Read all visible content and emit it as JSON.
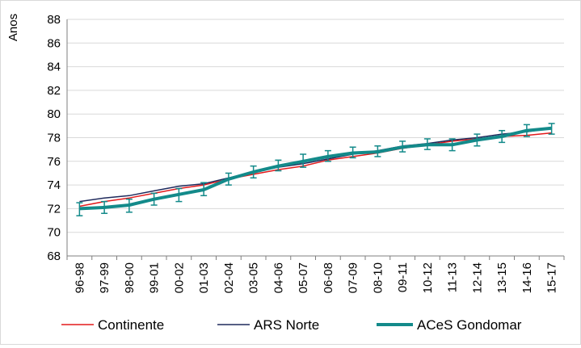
{
  "chart_data": {
    "type": "line",
    "ylabel": "Anos",
    "ylim": [
      68,
      88
    ],
    "ytick_step": 2,
    "grid": "horizontal",
    "legend_position": "bottom",
    "categories": [
      "96-98",
      "97-99",
      "98-00",
      "99-01",
      "00-02",
      "01-03",
      "02-04",
      "03-05",
      "04-06",
      "05-07",
      "06-08",
      "07-09",
      "08-10",
      "09-11",
      "10-12",
      "11-13",
      "12-14",
      "13-15",
      "14-16",
      "15-17"
    ],
    "series": [
      {
        "name": "Continente",
        "color": "#e31a1c",
        "values": [
          72.2,
          72.6,
          72.9,
          73.3,
          73.7,
          74.0,
          74.5,
          74.9,
          75.3,
          75.6,
          76.1,
          76.4,
          76.7,
          77.1,
          77.4,
          77.7,
          77.9,
          78.1,
          78.2,
          78.4
        ]
      },
      {
        "name": "ARS Norte",
        "color": "#1f2a5c",
        "values": [
          72.6,
          72.9,
          73.1,
          73.5,
          73.9,
          74.1,
          74.6,
          75.1,
          75.5,
          75.8,
          76.2,
          76.6,
          76.9,
          77.3,
          77.5,
          77.8,
          78.0,
          78.3,
          78.5,
          78.8
        ]
      },
      {
        "name": "ACeS Gondomar",
        "color": "#138a8a",
        "values": [
          72.0,
          72.1,
          72.3,
          72.8,
          73.2,
          73.6,
          74.5,
          75.1,
          75.6,
          76.0,
          76.4,
          76.7,
          76.8,
          77.2,
          77.4,
          77.4,
          77.8,
          78.1,
          78.6,
          78.8
        ],
        "error_low": [
          71.4,
          71.6,
          71.7,
          72.3,
          72.6,
          73.1,
          74.0,
          74.6,
          75.2,
          75.5,
          76.0,
          76.3,
          76.4,
          76.8,
          77.0,
          76.9,
          77.3,
          77.6,
          78.1,
          78.3
        ],
        "error_high": [
          72.5,
          72.6,
          72.8,
          73.3,
          73.7,
          74.2,
          75.0,
          75.6,
          76.1,
          76.6,
          76.9,
          77.2,
          77.3,
          77.7,
          77.9,
          77.9,
          78.3,
          78.6,
          79.1,
          79.2
        ]
      }
    ]
  }
}
